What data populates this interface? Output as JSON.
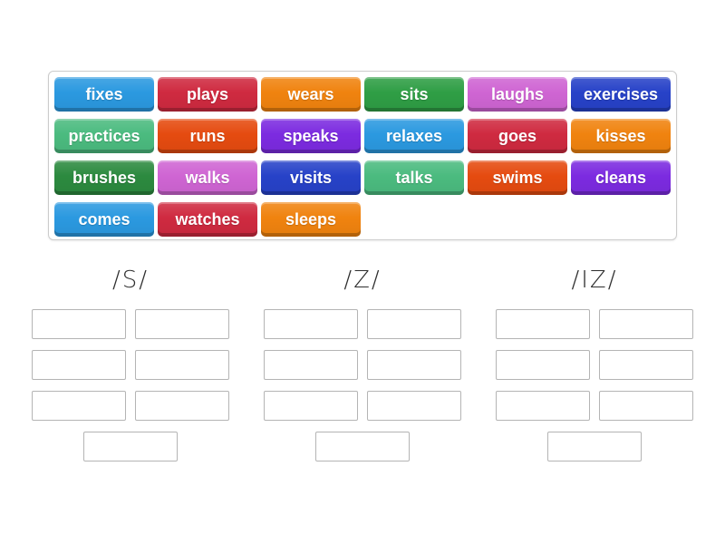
{
  "page": {
    "background": "#ffffff"
  },
  "palette": {
    "blue": "#2B99E0",
    "crimson": "#CF2A40",
    "orange": "#F0830F",
    "green": "#2F9E45",
    "orchid": "#CF65D3",
    "royal_blue": "#2742C8",
    "sea_green": "#4BBB7F",
    "orange_red": "#E54B10",
    "purple": "#7C2BE0",
    "dark_green": "#2C8A3F"
  },
  "ui_colors": {
    "tray_border": "#cccccc",
    "slot_border": "#b4b4b4",
    "header_text": "#2d2d2d",
    "tile_text": "#ffffff"
  },
  "tray": {
    "tiles": [
      {
        "label": "fixes",
        "color": "blue"
      },
      {
        "label": "plays",
        "color": "crimson"
      },
      {
        "label": "wears",
        "color": "orange"
      },
      {
        "label": "sits",
        "color": "green"
      },
      {
        "label": "laughs",
        "color": "orchid"
      },
      {
        "label": "exercises",
        "color": "royal_blue"
      },
      {
        "label": "practices",
        "color": "sea_green"
      },
      {
        "label": "runs",
        "color": "orange_red"
      },
      {
        "label": "speaks",
        "color": "purple"
      },
      {
        "label": "relaxes",
        "color": "blue"
      },
      {
        "label": "goes",
        "color": "crimson"
      },
      {
        "label": "kisses",
        "color": "orange"
      },
      {
        "label": "brushes",
        "color": "dark_green"
      },
      {
        "label": "walks",
        "color": "orchid"
      },
      {
        "label": "visits",
        "color": "royal_blue"
      },
      {
        "label": "talks",
        "color": "sea_green"
      },
      {
        "label": "swims",
        "color": "orange_red"
      },
      {
        "label": "cleans",
        "color": "purple"
      },
      {
        "label": "comes",
        "color": "blue"
      },
      {
        "label": "watches",
        "color": "crimson"
      },
      {
        "label": "sleeps",
        "color": "orange"
      }
    ]
  },
  "groups": [
    {
      "label": "/S/",
      "slot_count": 7
    },
    {
      "label": "/Z/",
      "slot_count": 7
    },
    {
      "label": "/IZ/",
      "slot_count": 7
    }
  ]
}
